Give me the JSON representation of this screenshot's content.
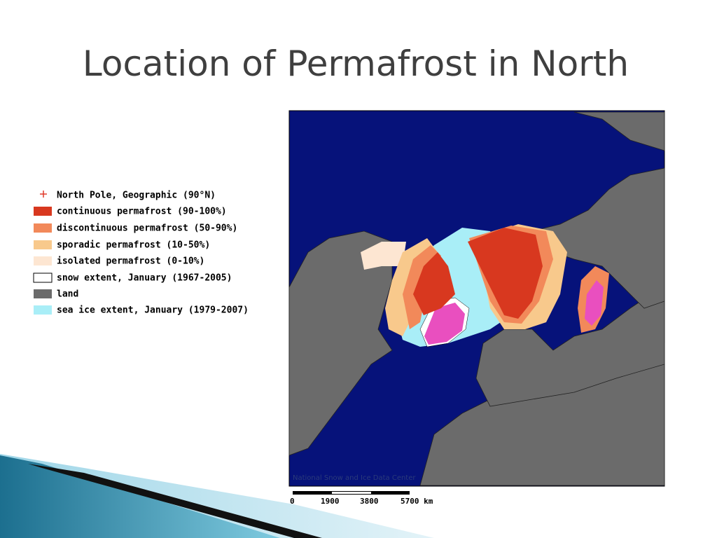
{
  "slide": {
    "title": "Location of Permafrost in North"
  },
  "legend": {
    "items": [
      {
        "label": "North Pole, Geographic (90°N)",
        "color": "#e03a2a"
      },
      {
        "label": "continuous permafrost (90-100%)",
        "color": "#d8381f"
      },
      {
        "label": "discontinuous permafrost (50-90%)",
        "color": "#f2895a"
      },
      {
        "label": "sporadic permafrost (10-50%)",
        "color": "#f8c98c"
      },
      {
        "label": "isolated permafrost (0-10%)",
        "color": "#fde6d2"
      },
      {
        "label": "snow extent, January (1967-2005)",
        "color": "#ffffff"
      },
      {
        "label": "land",
        "color": "#6b6b6b"
      },
      {
        "label": "sea ice extent, January (1979-2007)",
        "color": "#a9eef7"
      }
    ]
  },
  "map": {
    "credit": "National Snow and Ice Data Center",
    "scale_labels": [
      "0",
      "1900",
      "3800",
      "5700 km"
    ]
  }
}
